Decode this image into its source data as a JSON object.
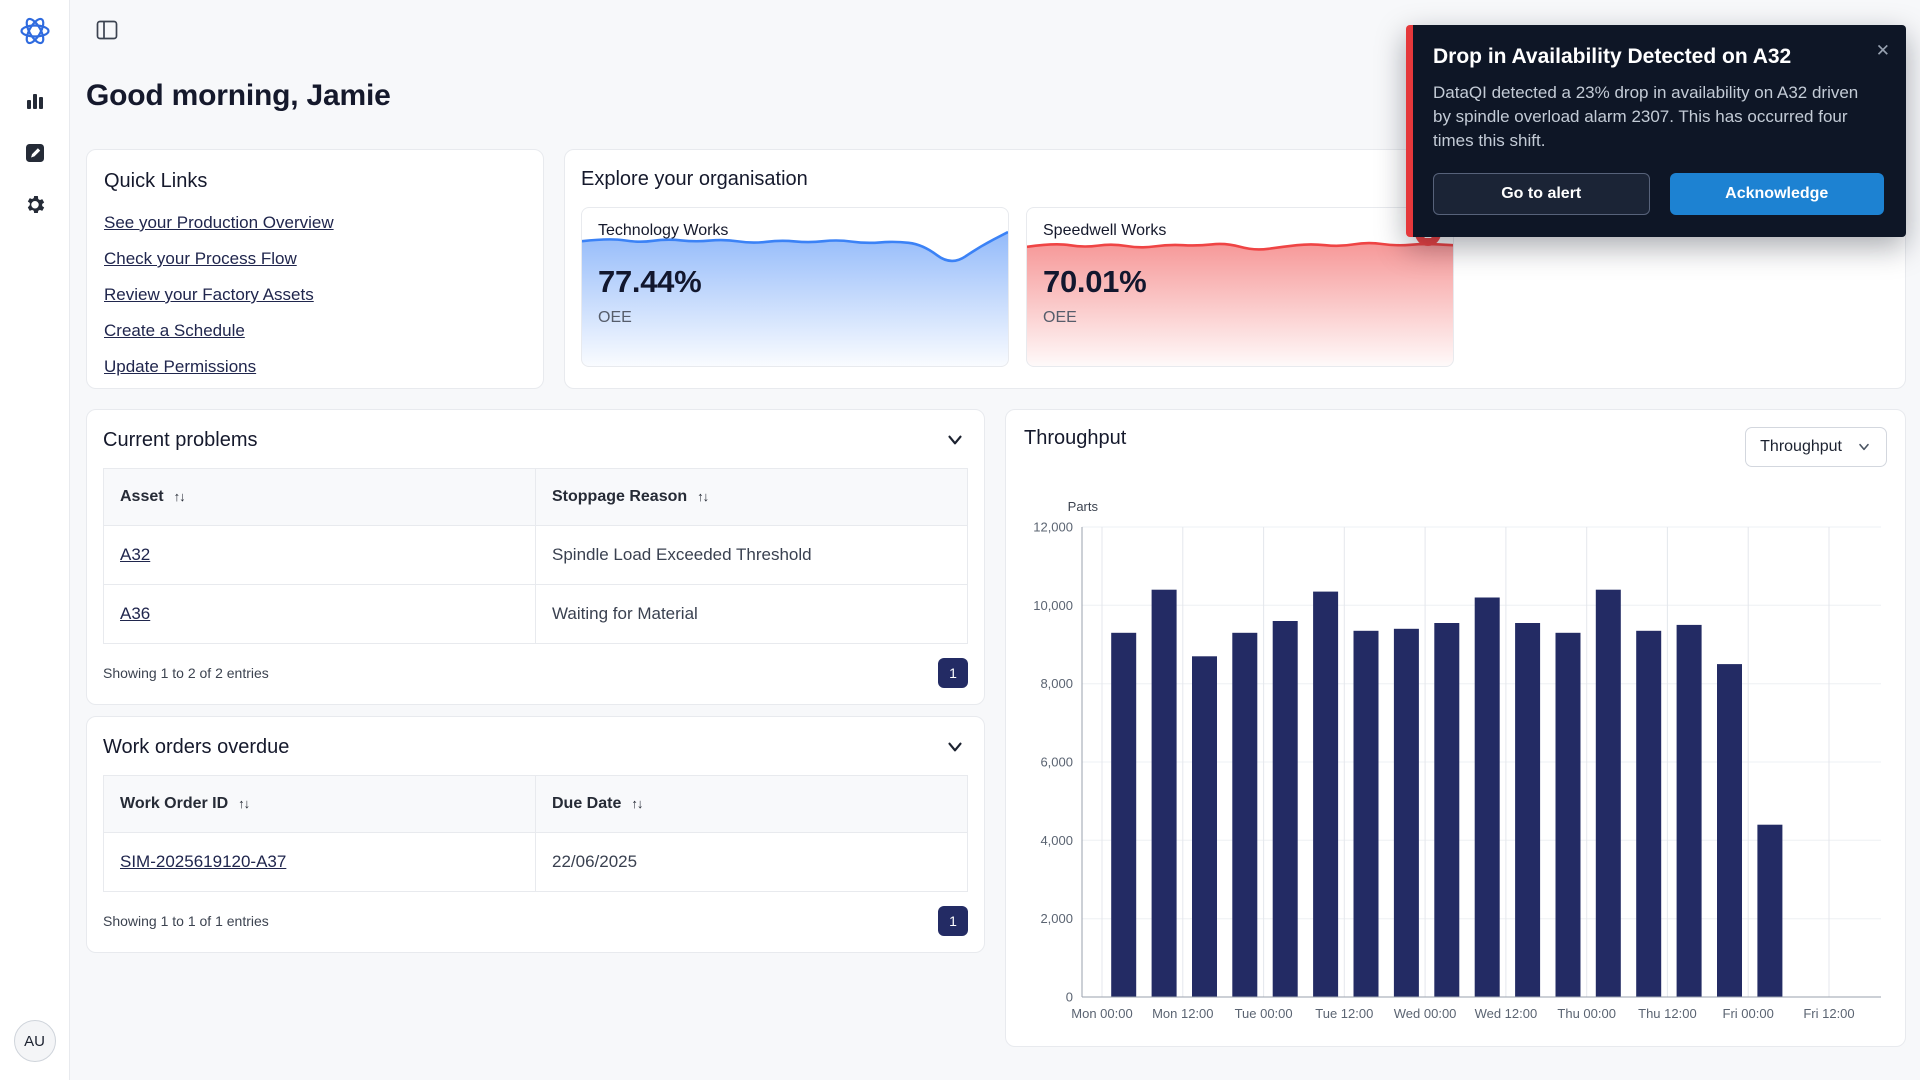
{
  "colors": {
    "brand_navy": "#232b64",
    "accent_blue": "#3b82f6",
    "accent_red": "#ef4444",
    "acknowledge_blue": "#1d82d2",
    "toast_background": "#0e1626",
    "toast_alert_red": "#e5383b"
  },
  "sidebar": {
    "avatar": "AU",
    "items": [
      {
        "name": "charts"
      },
      {
        "name": "edit"
      },
      {
        "name": "settings"
      }
    ]
  },
  "header": {
    "greeting": "Good morning, Jamie"
  },
  "quick_links": {
    "title": "Quick Links",
    "links": [
      "See your Production Overview",
      "Check your Process Flow",
      "Review your Factory Assets",
      "Create a Schedule",
      "Update Permissions"
    ]
  },
  "explore": {
    "title": "Explore your organisation",
    "sites": [
      {
        "id": "technology-works",
        "name": "Technology Works",
        "value": "77.44%",
        "metric": "OEE",
        "color": "#3b82f6",
        "badge": null,
        "spark": [
          0.38,
          0.3,
          0.42,
          0.32,
          0.4,
          0.33,
          0.44,
          0.35,
          0.42,
          0.34,
          0.44,
          0.38,
          0.46,
          1.0,
          0.52,
          0.15
        ]
      },
      {
        "id": "speedwell-works",
        "name": "Speedwell Works",
        "value": "70.01%",
        "metric": "OEE",
        "color": "#ef4444",
        "badge": "2",
        "spark": [
          0.52,
          0.42,
          0.54,
          0.44,
          0.56,
          0.46,
          0.5,
          0.42,
          0.62,
          0.52,
          0.44,
          0.52,
          0.4,
          0.5,
          0.44,
          0.48
        ]
      }
    ]
  },
  "current_problems": {
    "title": "Current problems",
    "columns": [
      "Asset",
      "Stoppage Reason"
    ],
    "sort_icon": "↑↓",
    "rows": [
      {
        "link": "A32",
        "text": "Spindle Load Exceeded Threshold"
      },
      {
        "link": "A36",
        "text": "Waiting for Material"
      }
    ],
    "footer": "Showing 1 to 2 of 2 entries",
    "page": "1"
  },
  "work_orders": {
    "title": "Work orders overdue",
    "columns": [
      "Work Order ID",
      "Due Date"
    ],
    "sort_icon": "↑↓",
    "rows": [
      {
        "link": "SIM-2025619120-A37",
        "text": "22/06/2025"
      }
    ],
    "footer": "Showing 1 to 1 of 1 entries",
    "page": "1"
  },
  "throughput": {
    "title": "Throughput",
    "select_value": "Throughput"
  },
  "chart_data": {
    "type": "bar",
    "title": "Throughput",
    "xlabel": "",
    "ylabel": "Parts",
    "ylim": [
      0,
      12000
    ],
    "yticks": [
      0,
      2000,
      4000,
      6000,
      8000,
      10000,
      12000
    ],
    "x": [
      "Mon 00:00",
      "Mon 06:00",
      "Mon 12:00",
      "Mon 18:00",
      "Tue 00:00",
      "Tue 06:00",
      "Tue 12:00",
      "Tue 18:00",
      "Wed 00:00",
      "Wed 06:00",
      "Wed 12:00",
      "Wed 18:00",
      "Thu 00:00",
      "Thu 06:00",
      "Thu 12:00",
      "Thu 18:00",
      "Fri 00:00"
    ],
    "values": [
      9300,
      10400,
      8700,
      9300,
      9600,
      10350,
      9350,
      9400,
      9550,
      10200,
      9550,
      9300,
      10400,
      9350,
      9500,
      8500,
      4400
    ],
    "xtick_labels": [
      "Mon 00:00",
      "Mon 12:00",
      "Tue 00:00",
      "Tue 12:00",
      "Wed 00:00",
      "Wed 12:00",
      "Thu 00:00",
      "Thu 12:00",
      "Fri 00:00",
      "Fri 12:00"
    ],
    "bar_color": "#232b64",
    "grid": "both",
    "legend": "none"
  },
  "toast": {
    "title": "Drop in Availability Detected on A32",
    "body": "DataQI detected a 23% drop in availability on A32 driven by spindle overload alarm 2307. This has occurred four times this shift.",
    "go_to_alert_label": "Go to alert",
    "acknowledge_label": "Acknowledge",
    "close_icon": "✕"
  }
}
